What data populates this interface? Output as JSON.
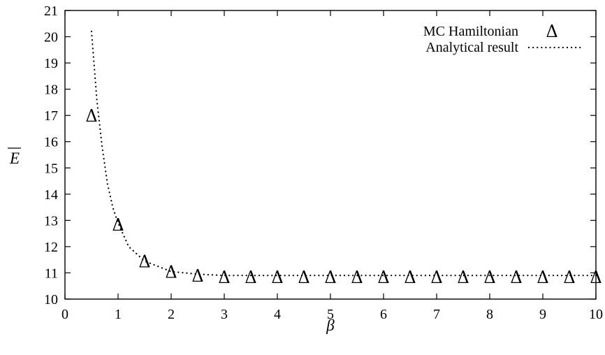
{
  "chart_data": {
    "type": "scatter",
    "title": "",
    "xlabel": "β",
    "ylabel": "E",
    "xlim": [
      0,
      10
    ],
    "ylim": [
      10,
      21
    ],
    "xticks": [
      0,
      1,
      2,
      3,
      4,
      5,
      6,
      7,
      8,
      9,
      10
    ],
    "yticks": [
      10,
      11,
      12,
      13,
      14,
      15,
      16,
      17,
      18,
      19,
      20,
      21
    ],
    "grid": false,
    "legend_position": "top-right",
    "series": [
      {
        "name": "MC Hamiltonian",
        "style": "triangle-markers",
        "marker": "Δ",
        "color": "#000000",
        "x": [
          0.5,
          1.0,
          1.5,
          2.0,
          2.5,
          3.0,
          3.5,
          4.0,
          4.5,
          5.0,
          5.5,
          6.0,
          6.5,
          7.0,
          7.5,
          8.0,
          8.5,
          9.0,
          9.5,
          10.0
        ],
        "y": [
          17.0,
          12.85,
          11.45,
          11.05,
          10.9,
          10.85,
          10.85,
          10.85,
          10.85,
          10.85,
          10.85,
          10.85,
          10.85,
          10.85,
          10.85,
          10.85,
          10.85,
          10.85,
          10.85,
          10.85
        ]
      },
      {
        "name": "Analytical result",
        "style": "dotted-line",
        "color": "#000000",
        "x": [
          0.5,
          0.6,
          0.7,
          0.8,
          0.9,
          1.0,
          1.2,
          1.5,
          2.0,
          2.5,
          3.0,
          4.0,
          5.0,
          6.0,
          7.0,
          8.0,
          9.0,
          10.0
        ],
        "y": [
          20.2,
          17.6,
          15.8,
          14.4,
          13.5,
          12.9,
          12.0,
          11.45,
          11.05,
          10.95,
          10.9,
          10.9,
          10.9,
          10.9,
          10.9,
          10.9,
          10.9,
          10.9
        ]
      }
    ]
  }
}
